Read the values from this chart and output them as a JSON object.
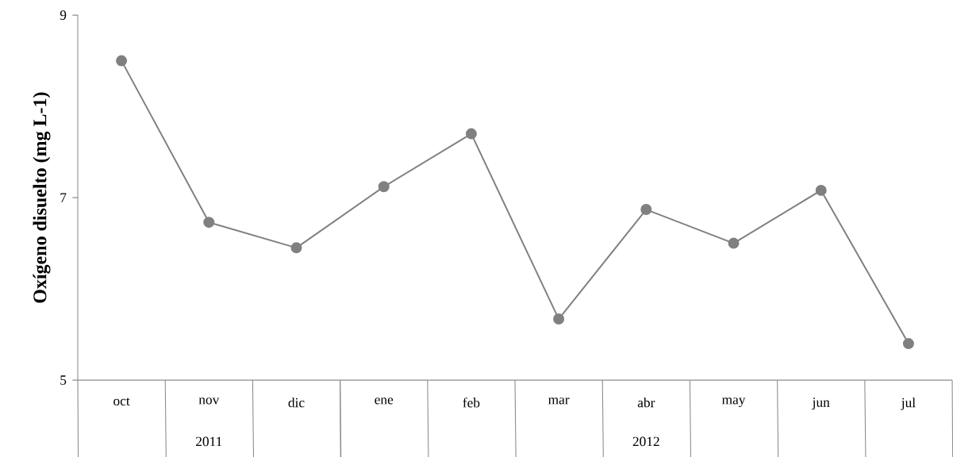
{
  "chart_data": {
    "type": "line",
    "ylabel": "Oxígeno disuelto (mg L-1)",
    "categories": [
      "oct",
      "nov",
      "dic",
      "ene",
      "feb",
      "mar",
      "abr",
      "may",
      "jun",
      "jul"
    ],
    "values": [
      8.5,
      6.73,
      6.45,
      7.12,
      7.7,
      5.67,
      6.87,
      6.5,
      7.08,
      5.4
    ],
    "color": "#808080",
    "marker": "circle",
    "line_style": "solid",
    "ylim": [
      5,
      9
    ],
    "yticks": [
      5,
      7,
      9
    ],
    "grid": false,
    "annotations": [
      "2011",
      "2012"
    ]
  }
}
